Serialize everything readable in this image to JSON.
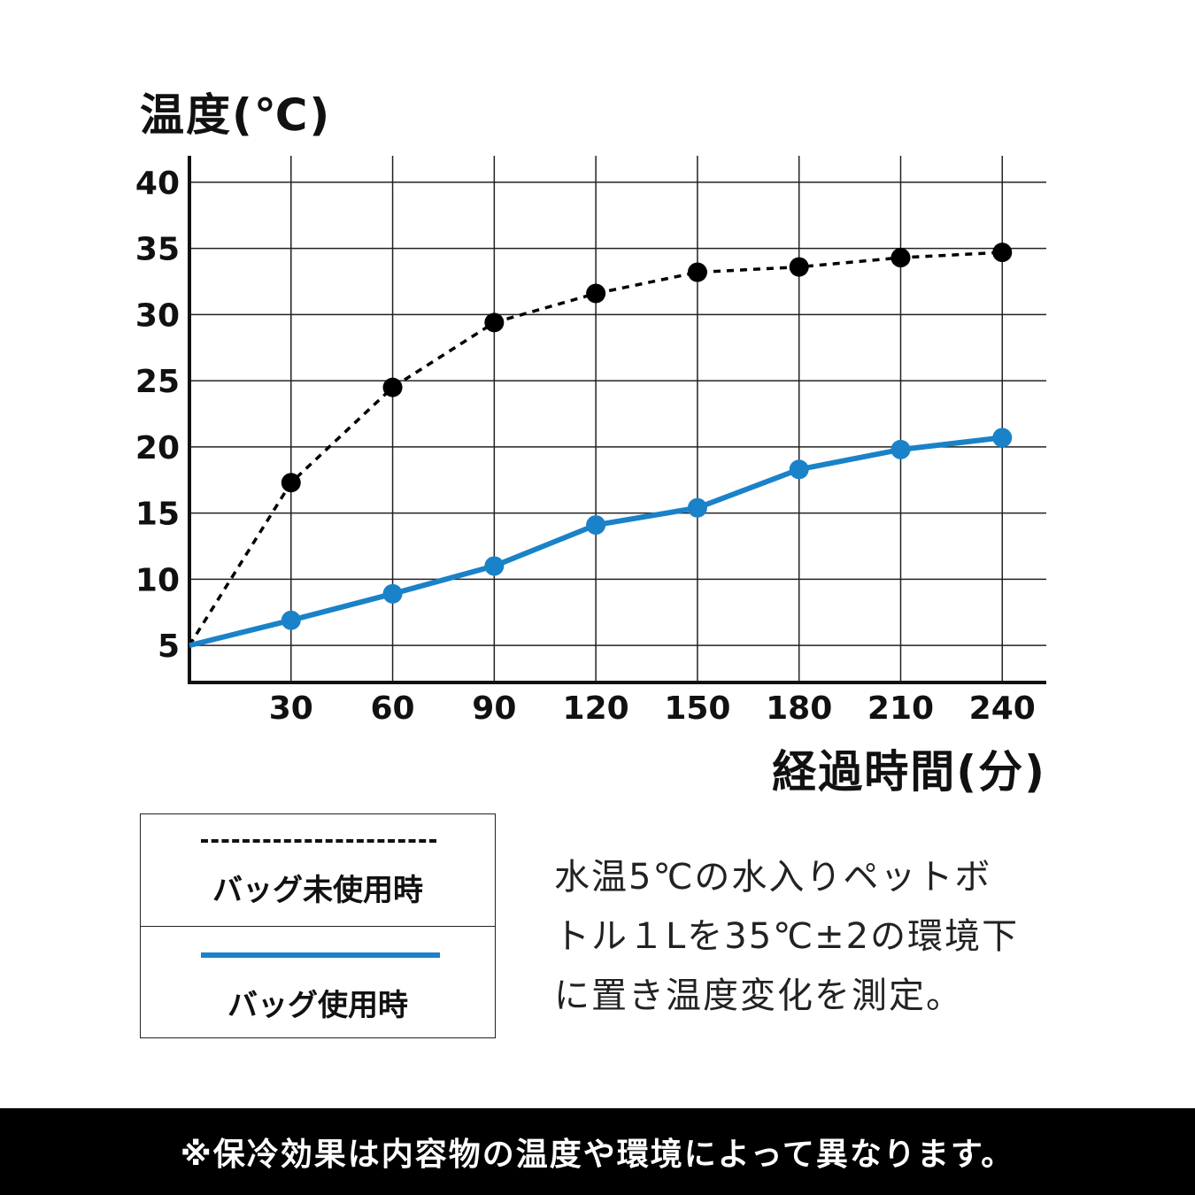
{
  "chart_data": {
    "type": "line",
    "ylabel": "温度(℃)",
    "xlabel": "経過時間(分)",
    "x": [
      0,
      30,
      60,
      90,
      120,
      150,
      180,
      210,
      240
    ],
    "x_ticks": [
      "30",
      "60",
      "90",
      "120",
      "150",
      "180",
      "210",
      "240"
    ],
    "y_ticks": [
      "5",
      "10",
      "15",
      "20",
      "25",
      "30",
      "35",
      "40"
    ],
    "ylim": [
      2.2,
      42
    ],
    "xlim": [
      0,
      253
    ],
    "grid": true,
    "series": [
      {
        "name": "バッグ未使用時",
        "style": "dashed-black",
        "color": "#000000",
        "values": [
          5,
          17.3,
          24.5,
          29.4,
          31.6,
          33.2,
          33.6,
          34.3,
          34.7
        ]
      },
      {
        "name": "バッグ使用時",
        "style": "solid-blue",
        "color": "#1a82c8",
        "values": [
          5,
          6.9,
          8.9,
          11.0,
          14.1,
          15.4,
          18.3,
          19.8,
          20.7
        ]
      }
    ]
  },
  "legend": {
    "unused_label": "バッグ未使用時",
    "used_label": "バッグ使用時"
  },
  "note": {
    "line1": "水温5℃の水入りペットボ",
    "line2": "トル１Lを35℃±2の環境下",
    "line3": "に置き温度変化を測定。"
  },
  "footer": {
    "text": "※保冷効果は内容物の温度や環境によって異なります。"
  }
}
